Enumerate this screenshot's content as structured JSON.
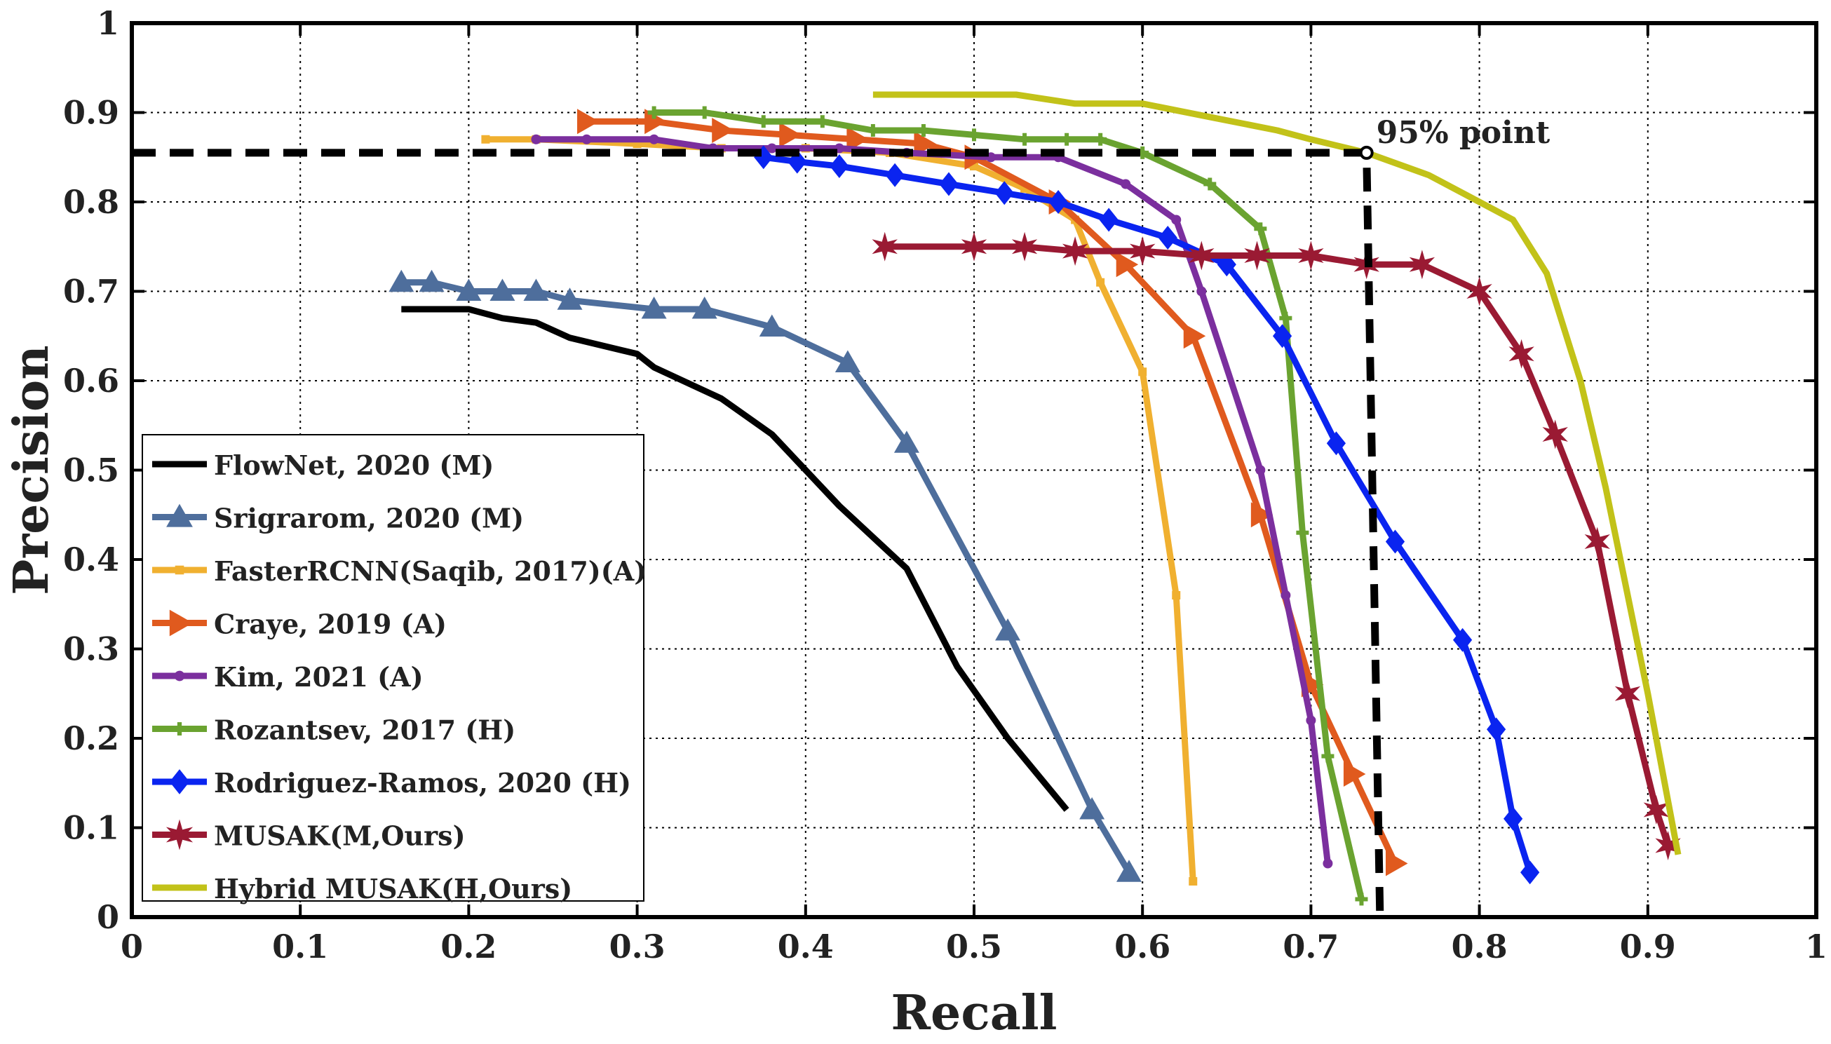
{
  "chart_data": {
    "type": "line",
    "title": "",
    "xlabel": "Recall",
    "ylabel": "Precision",
    "xlim": [
      0,
      1
    ],
    "ylim": [
      0,
      1
    ],
    "xticks": [
      0,
      0.1,
      0.2,
      0.3,
      0.4,
      0.5,
      0.6,
      0.7,
      0.8,
      0.9,
      1
    ],
    "yticks": [
      0,
      0.1,
      0.2,
      0.3,
      0.4,
      0.5,
      0.6,
      0.7,
      0.8,
      0.9,
      1
    ],
    "xtick_labels": [
      "0",
      "0.1",
      "0.2",
      "0.3",
      "0.4",
      "0.5",
      "0.6",
      "0.7",
      "0.8",
      "0.9",
      "1"
    ],
    "ytick_labels": [
      "0",
      "0.1",
      "0.2",
      "0.3",
      "0.4",
      "0.5",
      "0.6",
      "0.7",
      "0.8",
      "0.9",
      "1"
    ],
    "grid": true,
    "legend_position": "lower-left",
    "annotation": {
      "text": "95% point",
      "x": 0.733,
      "y": 0.855,
      "ref_line_color": "#000000"
    },
    "series": [
      {
        "name": "FlowNet, 2020 (M)",
        "color": "#000000",
        "marker": "none",
        "x": [
          0.16,
          0.2,
          0.22,
          0.24,
          0.26,
          0.3,
          0.31,
          0.35,
          0.38,
          0.42,
          0.46,
          0.49,
          0.52,
          0.555
        ],
        "y": [
          0.68,
          0.68,
          0.67,
          0.665,
          0.648,
          0.63,
          0.615,
          0.58,
          0.54,
          0.46,
          0.39,
          0.28,
          0.2,
          0.12
        ]
      },
      {
        "name": "Srigrarom, 2020 (M)",
        "color": "#4e6e9c",
        "marker": "triangle",
        "x": [
          0.16,
          0.178,
          0.2,
          0.22,
          0.24,
          0.26,
          0.31,
          0.34,
          0.38,
          0.425,
          0.46,
          0.52,
          0.57,
          0.592
        ],
        "y": [
          0.71,
          0.71,
          0.7,
          0.7,
          0.7,
          0.69,
          0.68,
          0.68,
          0.66,
          0.62,
          0.53,
          0.32,
          0.12,
          0.05
        ]
      },
      {
        "name": "FasterRCNN(Saqib, 2017)(A)",
        "color": "#f0b030",
        "marker": "square",
        "x": [
          0.21,
          0.24,
          0.3,
          0.35,
          0.4,
          0.45,
          0.5,
          0.53,
          0.56,
          0.575,
          0.6,
          0.62,
          0.63
        ],
        "y": [
          0.87,
          0.87,
          0.865,
          0.86,
          0.86,
          0.855,
          0.84,
          0.815,
          0.78,
          0.71,
          0.61,
          0.36,
          0.04
        ]
      },
      {
        "name": "Craye, 2019 (A)",
        "color": "#e05a1e",
        "marker": "triangle-right",
        "x": [
          0.27,
          0.31,
          0.35,
          0.39,
          0.43,
          0.47,
          0.5,
          0.55,
          0.59,
          0.63,
          0.67,
          0.7,
          0.725,
          0.75
        ],
        "y": [
          0.89,
          0.89,
          0.88,
          0.875,
          0.87,
          0.865,
          0.85,
          0.8,
          0.73,
          0.65,
          0.45,
          0.26,
          0.16,
          0.06
        ]
      },
      {
        "name": "Kim, 2021 (A)",
        "color": "#7b2f9e",
        "marker": "dot",
        "x": [
          0.24,
          0.27,
          0.31,
          0.345,
          0.38,
          0.42,
          0.46,
          0.51,
          0.55,
          0.59,
          0.62,
          0.635,
          0.67,
          0.685,
          0.7,
          0.71
        ],
        "y": [
          0.87,
          0.87,
          0.87,
          0.86,
          0.86,
          0.86,
          0.855,
          0.85,
          0.85,
          0.82,
          0.78,
          0.7,
          0.5,
          0.36,
          0.22,
          0.06
        ]
      },
      {
        "name": "Rozantsev, 2017 (H)",
        "color": "#6aa330",
        "marker": "plus",
        "x": [
          0.31,
          0.34,
          0.375,
          0.41,
          0.44,
          0.47,
          0.5,
          0.53,
          0.555,
          0.575,
          0.6,
          0.64,
          0.67,
          0.685,
          0.695,
          0.71,
          0.73
        ],
        "y": [
          0.9,
          0.9,
          0.89,
          0.89,
          0.88,
          0.88,
          0.875,
          0.87,
          0.87,
          0.87,
          0.855,
          0.82,
          0.77,
          0.67,
          0.43,
          0.18,
          0.02
        ]
      },
      {
        "name": "Rodriguez-Ramos, 2020 (H)",
        "color": "#0a24f0",
        "marker": "diamond",
        "x": [
          0.375,
          0.395,
          0.42,
          0.453,
          0.485,
          0.518,
          0.55,
          0.58,
          0.615,
          0.65,
          0.683,
          0.715,
          0.75,
          0.79,
          0.81,
          0.82,
          0.83
        ],
        "y": [
          0.85,
          0.845,
          0.84,
          0.83,
          0.82,
          0.81,
          0.8,
          0.78,
          0.76,
          0.73,
          0.65,
          0.53,
          0.42,
          0.31,
          0.21,
          0.11,
          0.05
        ]
      },
      {
        "name": "MUSAK(M,Ours)",
        "color": "#9a1a33",
        "marker": "star",
        "x": [
          0.447,
          0.5,
          0.53,
          0.56,
          0.6,
          0.635,
          0.668,
          0.7,
          0.733,
          0.766,
          0.8,
          0.825,
          0.845,
          0.87,
          0.888,
          0.905,
          0.912
        ],
        "y": [
          0.75,
          0.75,
          0.75,
          0.745,
          0.745,
          0.74,
          0.74,
          0.74,
          0.73,
          0.73,
          0.7,
          0.63,
          0.54,
          0.42,
          0.25,
          0.12,
          0.08
        ]
      },
      {
        "name": "Hybrid MUSAK(H,Ours)",
        "color": "#c2c219",
        "marker": "none",
        "x": [
          0.44,
          0.525,
          0.56,
          0.6,
          0.64,
          0.68,
          0.7,
          0.733,
          0.77,
          0.8,
          0.82,
          0.84,
          0.86,
          0.875,
          0.9,
          0.918
        ],
        "y": [
          0.92,
          0.92,
          0.91,
          0.91,
          0.895,
          0.88,
          0.87,
          0.855,
          0.83,
          0.8,
          0.78,
          0.72,
          0.6,
          0.48,
          0.25,
          0.07
        ]
      }
    ]
  }
}
